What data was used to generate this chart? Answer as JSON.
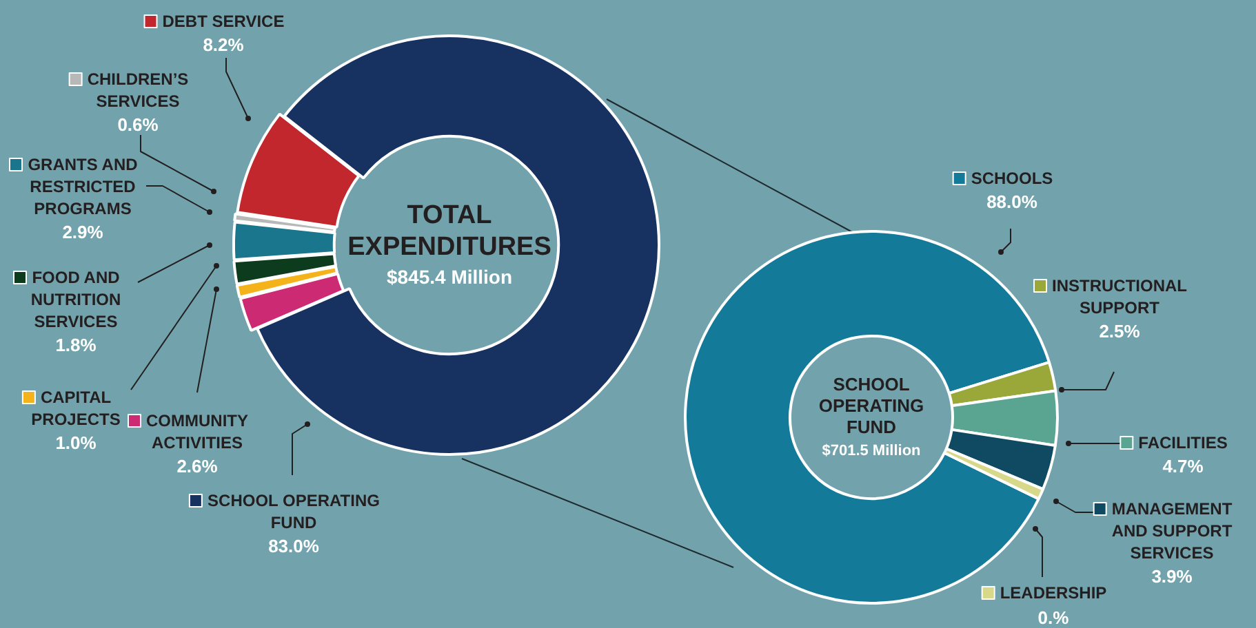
{
  "chart_data": [
    {
      "type": "donut",
      "title": "TOTAL EXPENDITURES",
      "subtitle": "$845.4 Million",
      "categories": [
        "SCHOOL OPERATING FUND",
        "COMMUNITY ACTIVITIES",
        "CAPITAL PROJECTS",
        "FOOD AND NUTRITION SERVICES",
        "GRANTS AND RESTRICTED PROGRAMS",
        "CHILDREN’S SERVICES",
        "DEBT SERVICE"
      ],
      "values": [
        83.0,
        2.6,
        1.0,
        1.8,
        2.9,
        0.6,
        8.2
      ],
      "value_labels": [
        "83.0%",
        "2.6%",
        "1.0%",
        "1.8%",
        "2.9%",
        "0.6%",
        "8.2%"
      ],
      "colors": [
        "#173160",
        "#cc2a72",
        "#f4b31a",
        "#0d3b1e",
        "#1a768c",
        "#b8b8b8",
        "#c1272d"
      ],
      "legend": "left"
    },
    {
      "type": "donut",
      "title": "SCHOOL OPERATING FUND",
      "subtitle": "$701.5 Million",
      "categories": [
        "SCHOOLS",
        "INSTRUCTIONAL SUPPORT",
        "FACILITIES",
        "MANAGEMENT AND SUPPORT SERVICES",
        "LEADERSHIP"
      ],
      "values": [
        88.0,
        2.5,
        4.7,
        3.9,
        0.9
      ],
      "value_labels": [
        "88.0%",
        "2.5%",
        "4.7%",
        "3.9%",
        null
      ],
      "annotations": [
        "0.%"
      ],
      "colors": [
        "#137a99",
        "#9aa83a",
        "#5aa592",
        "#0f4a62",
        "#d8d88a"
      ],
      "legend": "right"
    }
  ]
}
